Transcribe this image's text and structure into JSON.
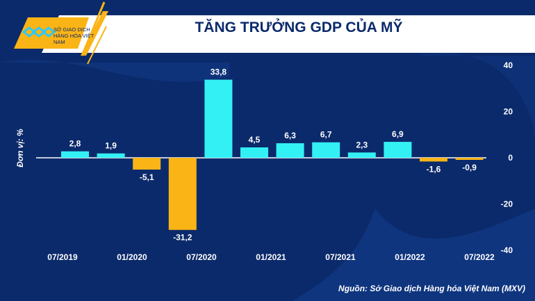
{
  "header": {
    "title": "TĂNG TRƯỞNG GDP CỦA MỸ",
    "logo_text": "SỞ GIAO DỊCH HÀNG HÓA VIỆT NAM"
  },
  "footer": {
    "source": "Nguồn: Sở Giao dịch Hàng hóa Việt Nam (MXV)"
  },
  "colors": {
    "positive": "#33f0f5",
    "negative": "#fbb416",
    "background": "#0b2a6b"
  },
  "chart_data": {
    "type": "bar",
    "title": "TĂNG TRƯỞNG GDP CỦA MỸ",
    "ylabel": "Đơn vị: %",
    "ylim": [
      -40,
      40
    ],
    "yticks": [
      "40",
      "20",
      "0",
      "-20",
      "-40"
    ],
    "ytick_values": [
      40,
      20,
      0,
      -20,
      -40
    ],
    "xtick_labels": [
      "07/2019",
      "01/2020",
      "07/2020",
      "01/2021",
      "07/2021",
      "01/2022",
      "07/2022"
    ],
    "values": [
      2.8,
      1.9,
      -5.1,
      -31.2,
      33.8,
      4.5,
      6.3,
      6.7,
      2.3,
      6.9,
      -1.6,
      -0.9
    ],
    "labels": [
      "2,8",
      "1,9",
      "-5,1",
      "-31,2",
      "33,8",
      "4,5",
      "6,3",
      "6,7",
      "2,3",
      "6,9",
      "-1,6",
      "-0,9"
    ]
  }
}
